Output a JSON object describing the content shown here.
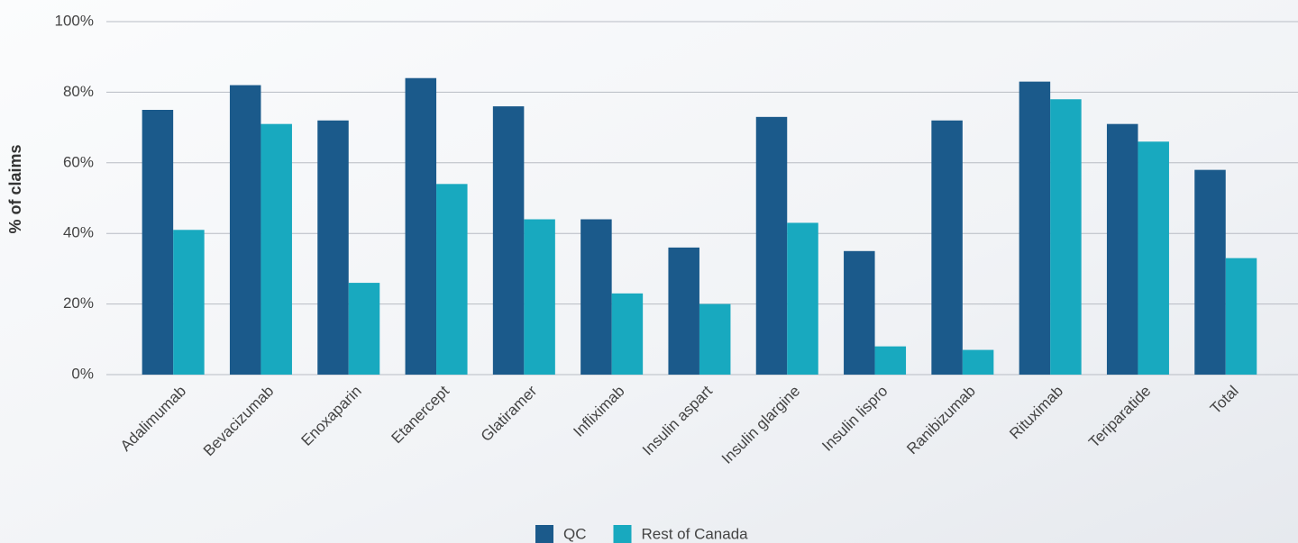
{
  "chart_data": {
    "type": "bar",
    "y_label": "% of claims",
    "categories": [
      "Adalimumab",
      "Bevacizumab",
      "Enoxaparin",
      "Etanercept",
      "Glatiramer",
      "Infliximab",
      "Insulin aspart",
      "Insulin glargine",
      "Insulin lispro",
      "Ranibizumab",
      "Rituximab",
      "Teriparatide",
      "Total"
    ],
    "series": [
      {
        "name": "QC",
        "color": "#1b5a8b",
        "values": [
          75,
          82,
          72,
          84,
          76,
          44,
          36,
          73,
          35,
          72,
          83,
          71,
          58
        ]
      },
      {
        "name": "Rest of Canada",
        "color": "#18a9bf",
        "values": [
          41,
          71,
          26,
          54,
          44,
          23,
          20,
          43,
          8,
          7,
          78,
          66,
          33
        ]
      }
    ],
    "ylim": [
      0,
      100
    ],
    "yticks": [
      {
        "value": 0,
        "label": "0%"
      },
      {
        "value": 20,
        "label": "20%"
      },
      {
        "value": 40,
        "label": "40%"
      },
      {
        "value": 60,
        "label": "60%"
      },
      {
        "value": 80,
        "label": "80%"
      },
      {
        "value": 100,
        "label": "100%"
      }
    ],
    "grid": true,
    "legend": "bottom"
  }
}
